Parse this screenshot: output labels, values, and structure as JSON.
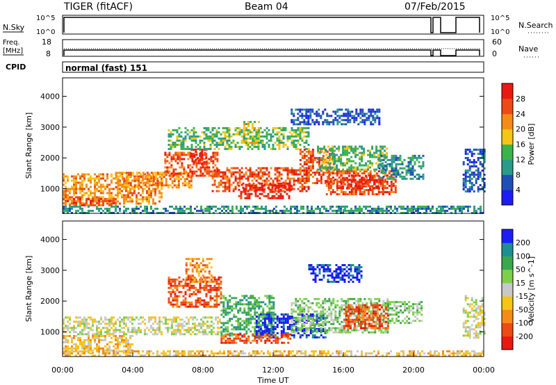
{
  "header": {
    "radar": "TIGER (fitACF)",
    "beam": "Beam 04",
    "date": "07/Feb/2015"
  },
  "noise_panel": {
    "left_label": "N.Sky",
    "right_label": "N.Search",
    "ticks": [
      "10^5",
      "10^0"
    ]
  },
  "freq_panel": {
    "left_label_1": "Freq.",
    "left_label_2": "[MHz]",
    "left_ticks": [
      "18",
      "8"
    ],
    "right_label": "Nave",
    "right_ticks": [
      "60",
      "0"
    ]
  },
  "cpid_panel": {
    "label": "CPID",
    "value": "normal (fast) 151"
  },
  "x_axis": {
    "title": "Time UT",
    "ticks": [
      "00:00",
      "04:00",
      "08:00",
      "12:00",
      "16:00",
      "20:00",
      "00:00"
    ]
  },
  "chart_data": [
    {
      "type": "heatmap",
      "name": "power-panel",
      "ylabel": "Slant Range [km]",
      "yticks": [
        1000,
        2000,
        3000,
        4000
      ],
      "ylim": [
        200,
        4600
      ],
      "xlim_hours": [
        0,
        24
      ],
      "colorbar": {
        "title": "Power [dB]",
        "ticks": [
          "4",
          "8",
          "12",
          "16",
          "20",
          "24",
          "28"
        ],
        "colors": [
          "#1c1cf5",
          "#1e4fb6",
          "#2a9a8a",
          "#3cb34a",
          "#f5c518",
          "#f58c18",
          "#ee4a15",
          "#e81a10"
        ]
      },
      "regions": [
        {
          "t0": 0.0,
          "t1": 5.6,
          "r0": 500,
          "r1": 1500,
          "level": 5
        },
        {
          "t0": 0.0,
          "t1": 3.0,
          "r0": 450,
          "r1": 700,
          "level": 6
        },
        {
          "t0": 3.0,
          "t1": 7.3,
          "r0": 1050,
          "r1": 1550,
          "level": 5
        },
        {
          "t0": 5.8,
          "t1": 8.8,
          "r0": 1400,
          "r1": 2200,
          "level": 6
        },
        {
          "t0": 7.3,
          "t1": 8.2,
          "r0": 1800,
          "r1": 2300,
          "level": 7
        },
        {
          "t0": 8.5,
          "t1": 14.0,
          "r0": 900,
          "r1": 1700,
          "level": 6
        },
        {
          "t0": 10.0,
          "t1": 13.0,
          "r0": 700,
          "r1": 1200,
          "level": 7
        },
        {
          "t0": 13.5,
          "t1": 15.5,
          "r0": 1200,
          "r1": 2300,
          "level": 6
        },
        {
          "t0": 15.0,
          "t1": 19.0,
          "r0": 800,
          "r1": 1600,
          "level": 6
        },
        {
          "t0": 15.8,
          "t1": 18.2,
          "r0": 1000,
          "r1": 1450,
          "level": 7
        },
        {
          "t0": 14.5,
          "t1": 18.5,
          "r0": 1600,
          "r1": 2400,
          "level": 3
        },
        {
          "t0": 18.0,
          "t1": 20.5,
          "r0": 1300,
          "r1": 2100,
          "level": 2
        },
        {
          "t0": 6.0,
          "t1": 14.0,
          "r0": 2300,
          "r1": 3000,
          "level": 3
        },
        {
          "t0": 10.3,
          "t1": 11.2,
          "r0": 2400,
          "r1": 3200,
          "level": 4
        },
        {
          "t0": 22.8,
          "t1": 24.0,
          "r0": 900,
          "r1": 2300,
          "level": 1
        },
        {
          "t0": 0.0,
          "t1": 24.0,
          "r0": 200,
          "r1": 450,
          "level": 2
        },
        {
          "t0": 13.0,
          "t1": 18.0,
          "r0": 3100,
          "r1": 3600,
          "level": 1
        }
      ]
    },
    {
      "type": "heatmap",
      "name": "velocity-panel",
      "ylabel": "Slant Range [km]",
      "yticks": [
        1000,
        2000,
        3000,
        4000
      ],
      "ylim": [
        200,
        4600
      ],
      "xlim_hours": [
        0,
        24
      ],
      "colorbar": {
        "title": "Velocity [m s^-1]",
        "ticks": [
          "-200",
          "-100",
          "-50",
          "-15",
          "15",
          "50",
          "100",
          "200"
        ],
        "colors": [
          "#e81a10",
          "#ee4a15",
          "#f58c18",
          "#f5c518",
          "#c8c8c8",
          "#7cd04a",
          "#3aa84a",
          "#1e8f8f",
          "#1c1cf5"
        ]
      },
      "regions": [
        {
          "t0": 0.0,
          "t1": 9.0,
          "r0": 900,
          "r1": 1500,
          "level": 4
        },
        {
          "t0": 0.0,
          "t1": 4.0,
          "r0": 300,
          "r1": 900,
          "level": 3
        },
        {
          "t0": 6.0,
          "t1": 9.0,
          "r0": 1800,
          "r1": 2800,
          "level": 1
        },
        {
          "t0": 7.0,
          "t1": 8.5,
          "r0": 2600,
          "r1": 3400,
          "level": 2
        },
        {
          "t0": 9.0,
          "t1": 12.0,
          "r0": 900,
          "r1": 2200,
          "level": 6
        },
        {
          "t0": 11.0,
          "t1": 15.0,
          "r0": 800,
          "r1": 1600,
          "level": 8
        },
        {
          "t0": 9.0,
          "t1": 13.0,
          "r0": 650,
          "r1": 950,
          "level": 1
        },
        {
          "t0": 13.0,
          "t1": 18.5,
          "r0": 1000,
          "r1": 2100,
          "level": 5
        },
        {
          "t0": 16.0,
          "t1": 18.5,
          "r0": 1100,
          "r1": 1900,
          "level": 1
        },
        {
          "t0": 14.0,
          "t1": 17.0,
          "r0": 2600,
          "r1": 3200,
          "level": 8
        },
        {
          "t0": 18.5,
          "t1": 20.5,
          "r0": 1300,
          "r1": 2000,
          "level": 5
        },
        {
          "t0": 22.8,
          "t1": 24.0,
          "r0": 800,
          "r1": 2200,
          "level": 4
        },
        {
          "t0": 0.0,
          "t1": 24.0,
          "r0": 200,
          "r1": 400,
          "level": 3
        }
      ]
    }
  ]
}
